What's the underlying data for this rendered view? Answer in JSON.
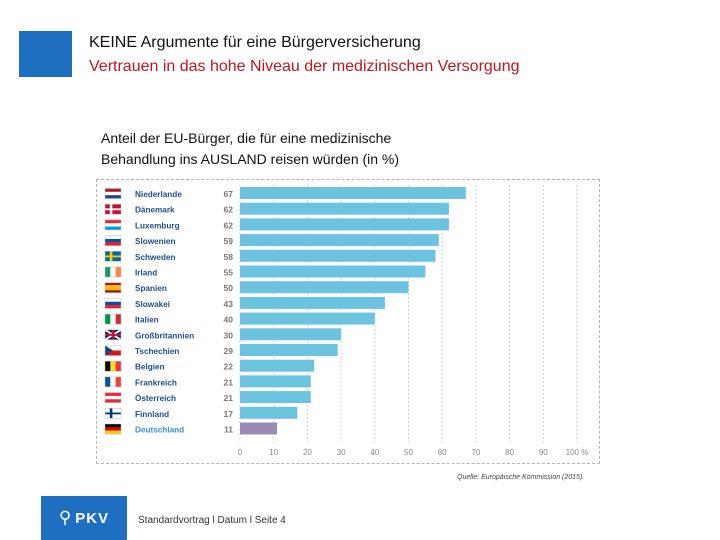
{
  "header": {
    "title": "KEINE Argumente für eine Bürgerversicherung",
    "subtitle": "Vertrauen in das hohe Niveau  der medizinischen Versorgung"
  },
  "chart_title_line1": "Anteil der EU-Bürger, die für eine medizinische",
  "chart_title_line2": "Behandlung ins AUSLAND reisen würden  (in %)",
  "chart_data": {
    "type": "bar",
    "orientation": "horizontal",
    "title": "Anteil der EU-Bürger, die für eine medizinische Behandlung ins AUSLAND reisen würden  (in %)",
    "categories": [
      "Niederlande",
      "Dänemark",
      "Luxemburg",
      "Slowenien",
      "Schweden",
      "Irland",
      "Spanien",
      "Slowakei",
      "Italien",
      "Großbritannien",
      "Tschechien",
      "Belgien",
      "Frankreich",
      "Österreich",
      "Finnland",
      "Deutschland"
    ],
    "values": [
      67,
      62,
      62,
      59,
      58,
      55,
      50,
      43,
      40,
      30,
      29,
      22,
      21,
      21,
      17,
      11
    ],
    "highlight": "Deutschland",
    "xlim": [
      0,
      100
    ],
    "xticks": [
      "0",
      "10",
      "20",
      "30",
      "40",
      "50",
      "60",
      "70",
      "80",
      "90",
      "100 %"
    ],
    "grid": true,
    "colors": {
      "bar": "#6cc3e0",
      "highlight_bar": "#9b8bb4",
      "label": "#1c4f8f",
      "highlight_label": "#3a8fcf",
      "value": "#777777",
      "grid": "#cfcfcf"
    }
  },
  "flags": [
    "flag-nl",
    "flag-dk",
    "flag-lu",
    "flag-si",
    "flag-se",
    "flag-ie",
    "flag-es",
    "flag-sk",
    "flag-it",
    "flag-gb",
    "flag-cz",
    "flag-be",
    "flag-fr",
    "flag-at",
    "flag-fi",
    "flag-de"
  ],
  "source": "Quelle: Europäische Kommission (2015).",
  "logo": {
    "text": "PKV"
  },
  "footer": "Standardvortrag l  Datum   l  Seite 4",
  "accent_color": "#1f6fc0"
}
